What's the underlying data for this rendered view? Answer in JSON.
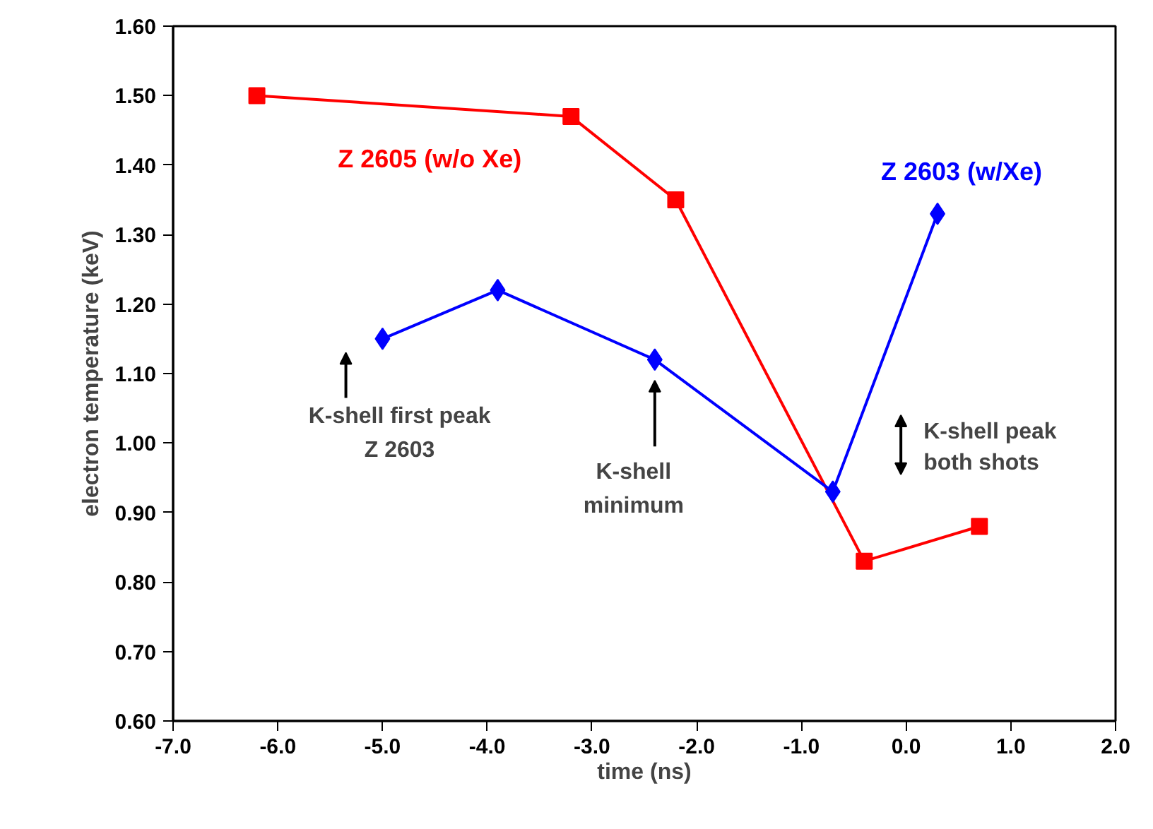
{
  "chart_data": {
    "type": "line",
    "xlabel": "time (ns)",
    "ylabel": "electron temperature (keV)",
    "xlim": [
      -7.0,
      2.0
    ],
    "ylim": [
      0.6,
      1.6
    ],
    "xticks": [
      {
        "value": -7,
        "label": "-7.0"
      },
      {
        "value": -6,
        "label": "-6.0"
      },
      {
        "value": -5,
        "label": "-5.0"
      },
      {
        "value": -4,
        "label": "-4.0"
      },
      {
        "value": -3,
        "label": "-3.0"
      },
      {
        "value": -2,
        "label": "-2.0"
      },
      {
        "value": -1,
        "label": "-1.0"
      },
      {
        "value": 0,
        "label": "0.0"
      },
      {
        "value": 1,
        "label": "1.0"
      },
      {
        "value": 2,
        "label": "2.0"
      }
    ],
    "yticks": [
      {
        "value": 0.6,
        "label": "0.60"
      },
      {
        "value": 0.7,
        "label": "0.70"
      },
      {
        "value": 0.8,
        "label": "0.80"
      },
      {
        "value": 0.9,
        "label": "0.90"
      },
      {
        "value": 1.0,
        "label": "1.00"
      },
      {
        "value": 1.1,
        "label": "1.10"
      },
      {
        "value": 1.2,
        "label": "1.20"
      },
      {
        "value": 1.3,
        "label": "1.30"
      },
      {
        "value": 1.4,
        "label": "1.40"
      },
      {
        "value": 1.5,
        "label": "1.50"
      },
      {
        "value": 1.6,
        "label": "1.60"
      }
    ],
    "grid": false,
    "series": [
      {
        "name": "Z 2605 (w/o Xe)",
        "color": "#ff0000",
        "marker": "square",
        "x": [
          -6.2,
          -3.2,
          -2.2,
          -0.4,
          0.7
        ],
        "values": [
          1.5,
          1.47,
          1.35,
          0.83,
          0.88
        ]
      },
      {
        "name": "Z 2603 (w/Xe)",
        "color": "#0000ff",
        "marker": "diamond",
        "x": [
          -5.0,
          -3.9,
          -2.4,
          -0.7,
          0.3
        ],
        "values": [
          1.15,
          1.22,
          1.12,
          0.93,
          1.33
        ]
      }
    ],
    "annotations": [
      "K-shell first peak\nZ 2603",
      "K-shell\nminimum",
      "K-shell peak\nboth shots"
    ]
  }
}
